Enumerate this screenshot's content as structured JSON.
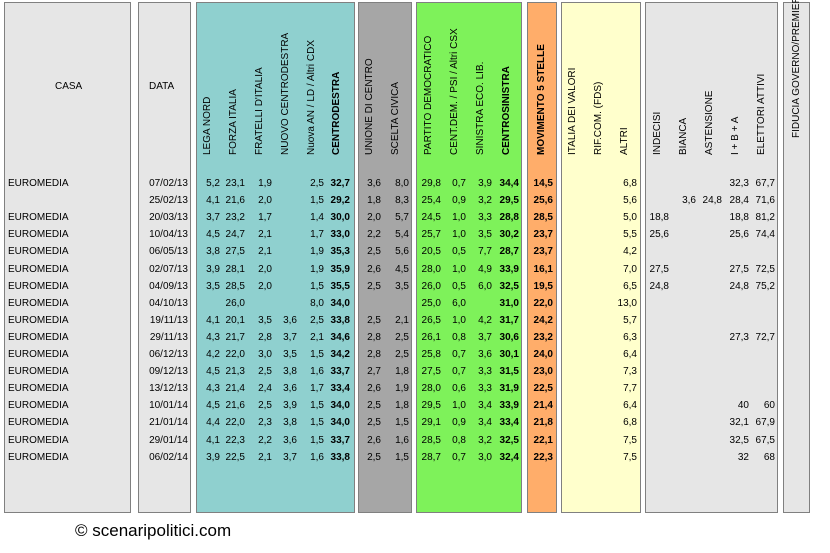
{
  "chart_data": {
    "type": "table",
    "headers": {
      "casa": "CASA",
      "data": "DATA",
      "lega_nord": "LEGA NORD",
      "forza_italia": "FORZA ITALIA",
      "fratelli_italia": "FRATELLI D'ITALIA",
      "nuovo_cdx": "NUOVO CENTRODESTRA",
      "nuova_an": "Nuova AN / LD / Altri CDX",
      "centrodestra": "CENTRODESTRA",
      "unione_centro": "UNIONE DI CENTRO",
      "scelta_civica": "SCELTA CIVICA",
      "pd": "PARTITO DEMOCRATICO",
      "cent_dem": "CENT.DEM. / PSI / Altri CSX",
      "sel": "SINISTRA ECO. LIB.",
      "centrosinistra": "CENTROSINISTRA",
      "m5s": "MOVIMENTO 5 STELLE",
      "idv": "ITALIA DEI VALORI",
      "rif_com": "RIF.COM. (FDS)",
      "altri": "ALTRI",
      "indecisi": "INDECISI",
      "bianca": "BIANCA",
      "astensione": "ASTENSIONE",
      "iba": "I + B + A",
      "elettori_attivi": "ELETTORI ATTIVI",
      "fiducia": "FIDUCIA GOVERNO/PREMIER"
    },
    "rows": [
      {
        "casa": "EUROMEDIA",
        "data": "07/02/13",
        "lega_nord": "5,2",
        "forza_italia": "23,1",
        "fratelli_italia": "1,9",
        "nuovo_cdx": "",
        "nuova_an": "2,5",
        "centrodestra": "32,7",
        "unione_centro": "3,6",
        "scelta_civica": "8,0",
        "pd": "29,8",
        "cent_dem": "0,7",
        "sel": "3,9",
        "centrosinistra": "34,4",
        "m5s": "14,5",
        "idv": "",
        "rif_com": "",
        "altri": "6,8",
        "indecisi": "",
        "bianca": "",
        "astensione": "",
        "iba": "32,3",
        "elettori_attivi": "67,7",
        "fiducia": ""
      },
      {
        "casa": "",
        "data": "25/02/13",
        "lega_nord": "4,1",
        "forza_italia": "21,6",
        "fratelli_italia": "2,0",
        "nuovo_cdx": "",
        "nuova_an": "1,5",
        "centrodestra": "29,2",
        "unione_centro": "1,8",
        "scelta_civica": "8,3",
        "pd": "25,4",
        "cent_dem": "0,9",
        "sel": "3,2",
        "centrosinistra": "29,5",
        "m5s": "25,6",
        "idv": "",
        "rif_com": "",
        "altri": "5,6",
        "indecisi": "",
        "bianca": "3,6",
        "astensione": "24,8",
        "iba": "28,4",
        "elettori_attivi": "71,6",
        "fiducia": ""
      },
      {
        "casa": "EUROMEDIA",
        "data": "20/03/13",
        "lega_nord": "3,7",
        "forza_italia": "23,2",
        "fratelli_italia": "1,7",
        "nuovo_cdx": "",
        "nuova_an": "1,4",
        "centrodestra": "30,0",
        "unione_centro": "2,0",
        "scelta_civica": "5,7",
        "pd": "24,5",
        "cent_dem": "1,0",
        "sel": "3,3",
        "centrosinistra": "28,8",
        "m5s": "28,5",
        "idv": "",
        "rif_com": "",
        "altri": "5,0",
        "indecisi": "18,8",
        "bianca": "",
        "astensione": "",
        "iba": "18,8",
        "elettori_attivi": "81,2",
        "fiducia": ""
      },
      {
        "casa": "EUROMEDIA",
        "data": "10/04/13",
        "lega_nord": "4,5",
        "forza_italia": "24,7",
        "fratelli_italia": "2,1",
        "nuovo_cdx": "",
        "nuova_an": "1,7",
        "centrodestra": "33,0",
        "unione_centro": "2,2",
        "scelta_civica": "5,4",
        "pd": "25,7",
        "cent_dem": "1,0",
        "sel": "3,5",
        "centrosinistra": "30,2",
        "m5s": "23,7",
        "idv": "",
        "rif_com": "",
        "altri": "5,5",
        "indecisi": "25,6",
        "bianca": "",
        "astensione": "",
        "iba": "25,6",
        "elettori_attivi": "74,4",
        "fiducia": ""
      },
      {
        "casa": "EUROMEDIA",
        "data": "06/05/13",
        "lega_nord": "3,8",
        "forza_italia": "27,5",
        "fratelli_italia": "2,1",
        "nuovo_cdx": "",
        "nuova_an": "1,9",
        "centrodestra": "35,3",
        "unione_centro": "2,5",
        "scelta_civica": "5,6",
        "pd": "20,5",
        "cent_dem": "0,5",
        "sel": "7,7",
        "centrosinistra": "28,7",
        "m5s": "23,7",
        "idv": "",
        "rif_com": "",
        "altri": "4,2",
        "indecisi": "",
        "bianca": "",
        "astensione": "",
        "iba": "",
        "elettori_attivi": "",
        "fiducia": ""
      },
      {
        "casa": "EUROMEDIA",
        "data": "02/07/13",
        "lega_nord": "3,9",
        "forza_italia": "28,1",
        "fratelli_italia": "2,0",
        "nuovo_cdx": "",
        "nuova_an": "1,9",
        "centrodestra": "35,9",
        "unione_centro": "2,6",
        "scelta_civica": "4,5",
        "pd": "28,0",
        "cent_dem": "1,0",
        "sel": "4,9",
        "centrosinistra": "33,9",
        "m5s": "16,1",
        "idv": "",
        "rif_com": "",
        "altri": "7,0",
        "indecisi": "27,5",
        "bianca": "",
        "astensione": "",
        "iba": "27,5",
        "elettori_attivi": "72,5",
        "fiducia": ""
      },
      {
        "casa": "EUROMEDIA",
        "data": "04/09/13",
        "lega_nord": "3,5",
        "forza_italia": "28,5",
        "fratelli_italia": "2,0",
        "nuovo_cdx": "",
        "nuova_an": "1,5",
        "centrodestra": "35,5",
        "unione_centro": "2,5",
        "scelta_civica": "3,5",
        "pd": "26,0",
        "cent_dem": "0,5",
        "sel": "6,0",
        "centrosinistra": "32,5",
        "m5s": "19,5",
        "idv": "",
        "rif_com": "",
        "altri": "6,5",
        "indecisi": "24,8",
        "bianca": "",
        "astensione": "",
        "iba": "24,8",
        "elettori_attivi": "75,2",
        "fiducia": ""
      },
      {
        "casa": "EUROMEDIA",
        "data": "04/10/13",
        "lega_nord": "",
        "forza_italia": "26,0",
        "fratelli_italia": "",
        "nuovo_cdx": "",
        "nuova_an": "8,0",
        "centrodestra": "34,0",
        "unione_centro": "",
        "scelta_civica": "",
        "pd": "25,0",
        "cent_dem": "6,0",
        "sel": "",
        "centrosinistra": "31,0",
        "m5s": "22,0",
        "idv": "",
        "rif_com": "",
        "altri": "13,0",
        "indecisi": "",
        "bianca": "",
        "astensione": "",
        "iba": "",
        "elettori_attivi": "",
        "fiducia": ""
      },
      {
        "casa": "EUROMEDIA",
        "data": "19/11/13",
        "lega_nord": "4,1",
        "forza_italia": "20,1",
        "fratelli_italia": "3,5",
        "nuovo_cdx": "3,6",
        "nuova_an": "2,5",
        "centrodestra": "33,8",
        "unione_centro": "2,5",
        "scelta_civica": "2,1",
        "pd": "26,5",
        "cent_dem": "1,0",
        "sel": "4,2",
        "centrosinistra": "31,7",
        "m5s": "24,2",
        "idv": "",
        "rif_com": "",
        "altri": "5,7",
        "indecisi": "",
        "bianca": "",
        "astensione": "",
        "iba": "",
        "elettori_attivi": "",
        "fiducia": ""
      },
      {
        "casa": "EUROMEDIA",
        "data": "29/11/13",
        "lega_nord": "4,3",
        "forza_italia": "21,7",
        "fratelli_italia": "2,8",
        "nuovo_cdx": "3,7",
        "nuova_an": "2,1",
        "centrodestra": "34,6",
        "unione_centro": "2,8",
        "scelta_civica": "2,5",
        "pd": "26,1",
        "cent_dem": "0,8",
        "sel": "3,7",
        "centrosinistra": "30,6",
        "m5s": "23,2",
        "idv": "",
        "rif_com": "",
        "altri": "6,3",
        "indecisi": "",
        "bianca": "",
        "astensione": "",
        "iba": "27,3",
        "elettori_attivi": "72,7",
        "fiducia": ""
      },
      {
        "casa": "EUROMEDIA",
        "data": "06/12/13",
        "lega_nord": "4,2",
        "forza_italia": "22,0",
        "fratelli_italia": "3,0",
        "nuovo_cdx": "3,5",
        "nuova_an": "1,5",
        "centrodestra": "34,2",
        "unione_centro": "2,8",
        "scelta_civica": "2,5",
        "pd": "25,8",
        "cent_dem": "0,7",
        "sel": "3,6",
        "centrosinistra": "30,1",
        "m5s": "24,0",
        "idv": "",
        "rif_com": "",
        "altri": "6,4",
        "indecisi": "",
        "bianca": "",
        "astensione": "",
        "iba": "",
        "elettori_attivi": "",
        "fiducia": ""
      },
      {
        "casa": "EUROMEDIA",
        "data": "09/12/13",
        "lega_nord": "4,5",
        "forza_italia": "21,3",
        "fratelli_italia": "2,5",
        "nuovo_cdx": "3,8",
        "nuova_an": "1,6",
        "centrodestra": "33,7",
        "unione_centro": "2,7",
        "scelta_civica": "1,8",
        "pd": "27,5",
        "cent_dem": "0,7",
        "sel": "3,3",
        "centrosinistra": "31,5",
        "m5s": "23,0",
        "idv": "",
        "rif_com": "",
        "altri": "7,3",
        "indecisi": "",
        "bianca": "",
        "astensione": "",
        "iba": "",
        "elettori_attivi": "",
        "fiducia": ""
      },
      {
        "casa": "EUROMEDIA",
        "data": "13/12/13",
        "lega_nord": "4,3",
        "forza_italia": "21,4",
        "fratelli_italia": "2,4",
        "nuovo_cdx": "3,6",
        "nuova_an": "1,7",
        "centrodestra": "33,4",
        "unione_centro": "2,6",
        "scelta_civica": "1,9",
        "pd": "28,0",
        "cent_dem": "0,6",
        "sel": "3,3",
        "centrosinistra": "31,9",
        "m5s": "22,5",
        "idv": "",
        "rif_com": "",
        "altri": "7,7",
        "indecisi": "",
        "bianca": "",
        "astensione": "",
        "iba": "",
        "elettori_attivi": "",
        "fiducia": ""
      },
      {
        "casa": "EUROMEDIA",
        "data": "10/01/14",
        "lega_nord": "4,5",
        "forza_italia": "21,6",
        "fratelli_italia": "2,5",
        "nuovo_cdx": "3,9",
        "nuova_an": "1,5",
        "centrodestra": "34,0",
        "unione_centro": "2,5",
        "scelta_civica": "1,8",
        "pd": "29,5",
        "cent_dem": "1,0",
        "sel": "3,4",
        "centrosinistra": "33,9",
        "m5s": "21,4",
        "idv": "",
        "rif_com": "",
        "altri": "6,4",
        "indecisi": "",
        "bianca": "",
        "astensione": "",
        "iba": "40",
        "elettori_attivi": "60",
        "fiducia": ""
      },
      {
        "casa": "EUROMEDIA",
        "data": "21/01/14",
        "lega_nord": "4,4",
        "forza_italia": "22,0",
        "fratelli_italia": "2,3",
        "nuovo_cdx": "3,8",
        "nuova_an": "1,5",
        "centrodestra": "34,0",
        "unione_centro": "2,5",
        "scelta_civica": "1,5",
        "pd": "29,1",
        "cent_dem": "0,9",
        "sel": "3,4",
        "centrosinistra": "33,4",
        "m5s": "21,8",
        "idv": "",
        "rif_com": "",
        "altri": "6,8",
        "indecisi": "",
        "bianca": "",
        "astensione": "",
        "iba": "32,1",
        "elettori_attivi": "67,9",
        "fiducia": ""
      },
      {
        "casa": "EUROMEDIA",
        "data": "29/01/14",
        "lega_nord": "4,1",
        "forza_italia": "22,3",
        "fratelli_italia": "2,2",
        "nuovo_cdx": "3,6",
        "nuova_an": "1,5",
        "centrodestra": "33,7",
        "unione_centro": "2,6",
        "scelta_civica": "1,6",
        "pd": "28,5",
        "cent_dem": "0,8",
        "sel": "3,2",
        "centrosinistra": "32,5",
        "m5s": "22,1",
        "idv": "",
        "rif_com": "",
        "altri": "7,5",
        "indecisi": "",
        "bianca": "",
        "astensione": "",
        "iba": "32,5",
        "elettori_attivi": "67,5",
        "fiducia": ""
      },
      {
        "casa": "EUROMEDIA",
        "data": "06/02/14",
        "lega_nord": "3,9",
        "forza_italia": "22,5",
        "fratelli_italia": "2,1",
        "nuovo_cdx": "3,7",
        "nuova_an": "1,6",
        "centrodestra": "33,8",
        "unione_centro": "2,5",
        "scelta_civica": "1,5",
        "pd": "28,7",
        "cent_dem": "0,7",
        "sel": "3,0",
        "centrosinistra": "32,4",
        "m5s": "22,3",
        "idv": "",
        "rif_com": "",
        "altri": "7,5",
        "indecisi": "",
        "bianca": "",
        "astensione": "",
        "iba": "32",
        "elettori_attivi": "68",
        "fiducia": ""
      }
    ]
  },
  "colors": {
    "centrodestra": "#8fd0cf",
    "centro": "#a6a6a6",
    "centrosinistra": "#7ef25a",
    "m5s": "#ffad6a",
    "altri": "#ffffcc",
    "neutral": "#e6e6e6"
  },
  "copyright": "© scenaripolitici.com"
}
